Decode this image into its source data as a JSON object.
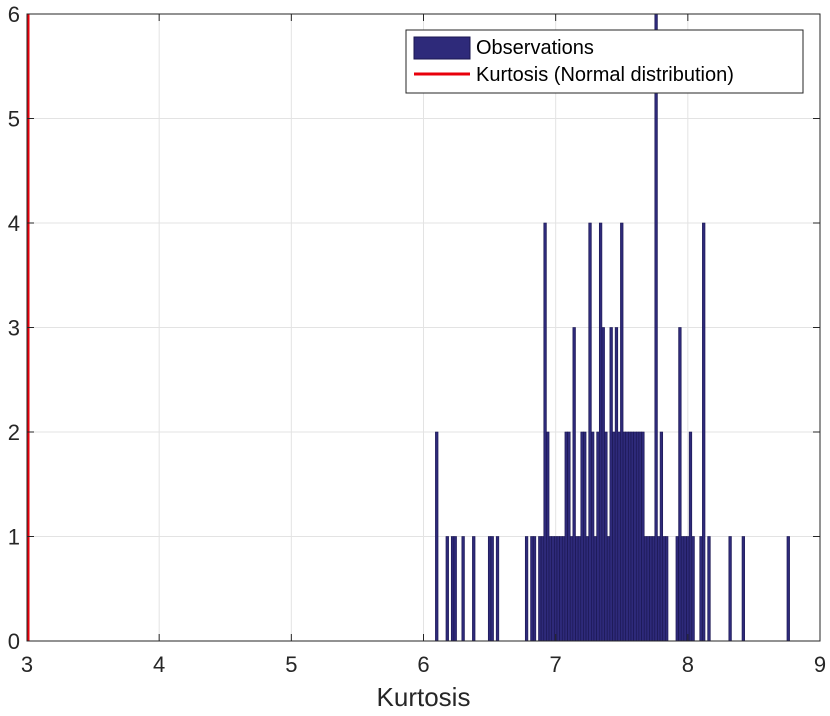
{
  "chart_data": {
    "type": "bar",
    "xlabel": "Kurtosis",
    "ylabel": "",
    "title": "",
    "xlim": [
      3,
      9
    ],
    "ylim": [
      0,
      6
    ],
    "x_ticks": [
      "3",
      "4",
      "5",
      "6",
      "7",
      "8",
      "9"
    ],
    "y_ticks": [
      "0",
      "1",
      "2",
      "3",
      "4",
      "5",
      "6"
    ],
    "grid": true,
    "legend_position": "top-right",
    "bin_width": 0.02,
    "series": [
      {
        "name": "Observations",
        "color": "#2E2A7A",
        "edge_color": "#1A1650",
        "bins": [
          [
            6.1,
            2
          ],
          [
            6.18,
            1
          ],
          [
            6.22,
            1
          ],
          [
            6.24,
            1
          ],
          [
            6.3,
            1
          ],
          [
            6.38,
            1
          ],
          [
            6.5,
            1
          ],
          [
            6.52,
            1
          ],
          [
            6.56,
            1
          ],
          [
            6.78,
            1
          ],
          [
            6.82,
            1
          ],
          [
            6.84,
            1
          ],
          [
            6.88,
            1
          ],
          [
            6.9,
            1
          ],
          [
            6.92,
            4
          ],
          [
            6.94,
            2
          ],
          [
            6.96,
            1
          ],
          [
            6.98,
            1
          ],
          [
            7.0,
            1
          ],
          [
            7.02,
            1
          ],
          [
            7.04,
            1
          ],
          [
            7.06,
            1
          ],
          [
            7.08,
            2
          ],
          [
            7.1,
            2
          ],
          [
            7.12,
            1
          ],
          [
            7.14,
            3
          ],
          [
            7.16,
            1
          ],
          [
            7.18,
            1
          ],
          [
            7.2,
            2
          ],
          [
            7.22,
            2
          ],
          [
            7.24,
            1
          ],
          [
            7.26,
            4
          ],
          [
            7.28,
            2
          ],
          [
            7.3,
            1
          ],
          [
            7.32,
            2
          ],
          [
            7.34,
            4
          ],
          [
            7.36,
            3
          ],
          [
            7.38,
            2
          ],
          [
            7.4,
            1
          ],
          [
            7.42,
            3
          ],
          [
            7.44,
            2
          ],
          [
            7.46,
            3
          ],
          [
            7.48,
            2
          ],
          [
            7.5,
            4
          ],
          [
            7.52,
            2
          ],
          [
            7.54,
            2
          ],
          [
            7.56,
            2
          ],
          [
            7.58,
            2
          ],
          [
            7.6,
            2
          ],
          [
            7.62,
            2
          ],
          [
            7.64,
            2
          ],
          [
            7.66,
            2
          ],
          [
            7.68,
            1
          ],
          [
            7.7,
            1
          ],
          [
            7.72,
            1
          ],
          [
            7.74,
            1
          ],
          [
            7.76,
            6
          ],
          [
            7.78,
            1
          ],
          [
            7.8,
            2
          ],
          [
            7.82,
            1
          ],
          [
            7.84,
            1
          ],
          [
            7.92,
            1
          ],
          [
            7.94,
            3
          ],
          [
            7.96,
            1
          ],
          [
            7.98,
            1
          ],
          [
            8.0,
            1
          ],
          [
            8.02,
            2
          ],
          [
            8.04,
            1
          ],
          [
            8.1,
            1
          ],
          [
            8.12,
            4
          ],
          [
            8.16,
            1
          ],
          [
            8.32,
            1
          ],
          [
            8.42,
            1
          ],
          [
            8.76,
            1
          ]
        ]
      },
      {
        "name": "Kurtosis (Normal distribution)",
        "type": "vline",
        "color": "#E8000B",
        "x": 3
      }
    ]
  }
}
